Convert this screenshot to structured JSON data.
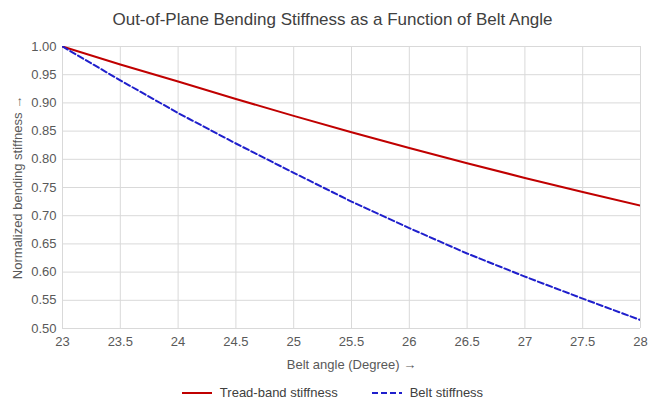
{
  "chart_data": {
    "type": "line",
    "title": "Out-of-Plane Bending Stiffness as a Function of Belt Angle",
    "x_label": "Belt angle (Degree)",
    "y_label": "Normalized bending stiffness",
    "x": [
      23,
      23.5,
      24,
      24.5,
      25,
      25.5,
      26,
      26.5,
      27,
      27.5,
      28
    ],
    "series": [
      {
        "name": "Tread-band stiffness",
        "color": "#c00000",
        "line_style": "solid",
        "values": [
          1.0,
          0.968,
          0.938,
          0.907,
          0.877,
          0.848,
          0.82,
          0.793,
          0.767,
          0.742,
          0.718
        ]
      },
      {
        "name": "Belt stiffness",
        "color": "#1f1fcc",
        "line_style": "dashed",
        "values": [
          1.0,
          0.94,
          0.882,
          0.828,
          0.776,
          0.725,
          0.678,
          0.633,
          0.592,
          0.553,
          0.515
        ]
      }
    ],
    "xlim": [
      23,
      28
    ],
    "xticks": [
      23,
      23.5,
      24,
      24.5,
      25,
      25.5,
      26,
      26.5,
      27,
      27.5,
      28
    ],
    "ylim": [
      0.5,
      1.0
    ],
    "yticks": [
      {
        "value": 0.5,
        "label": "0.50"
      },
      0.55,
      {
        "value": 0.6,
        "label": "0.60"
      },
      0.65,
      {
        "value": 0.7,
        "label": "0.70"
      },
      0.75,
      {
        "value": 0.8,
        "label": "0.80"
      },
      0.85,
      {
        "value": 0.9,
        "label": "0.90"
      },
      0.95,
      {
        "value": 1.0,
        "label": "1.00"
      }
    ],
    "grid": true,
    "legend": "bottom"
  }
}
